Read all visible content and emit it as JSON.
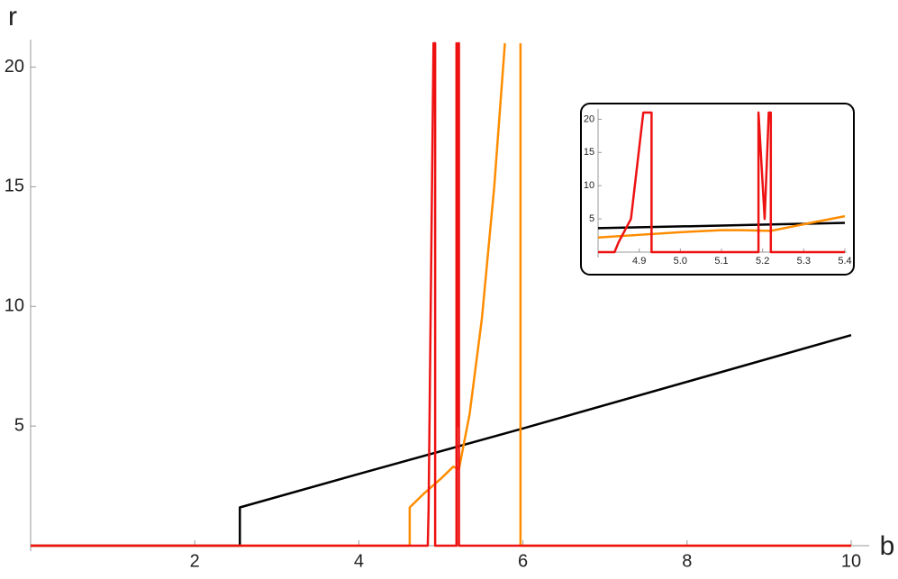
{
  "chart_data": [
    {
      "type": "line",
      "x_label": "b",
      "y_label": "r",
      "xlim": [
        0,
        10
      ],
      "ylim": [
        0,
        21
      ],
      "xticks": [
        2,
        4,
        6,
        8,
        10
      ],
      "yticks": [
        5,
        10,
        15,
        20
      ],
      "series": [
        {
          "color": "#000000",
          "x": [
            0,
            2.55,
            2.55,
            4,
            6,
            8,
            10
          ],
          "values": [
            0,
            0,
            1.6,
            3.0,
            4.9,
            6.85,
            8.8
          ]
        },
        {
          "color": "#ff8c00",
          "x": [
            0,
            4.62,
            4.62,
            4.8,
            5.0,
            5.15,
            5.22,
            5.35,
            5.5,
            5.65,
            5.78,
            5.9,
            5.97,
            5.97,
            10
          ],
          "values": [
            0,
            0,
            1.6,
            2.2,
            2.8,
            3.3,
            3.2,
            5.5,
            9.5,
            15,
            21,
            null,
            21,
            0,
            0
          ]
        },
        {
          "color": "#ee1111",
          "x": [
            0,
            4.84,
            4.85,
            4.91,
            4.93,
            4.93,
            5.19,
            5.19,
            5.205,
            5.215,
            5.22,
            5.22,
            10
          ],
          "values": [
            0,
            0,
            1.5,
            21,
            21,
            0,
            0,
            21,
            5,
            21,
            21,
            0,
            0
          ]
        }
      ]
    },
    {
      "type": "line",
      "xlim": [
        4.8,
        5.4
      ],
      "ylim": [
        0,
        21
      ],
      "xticks": [
        4.9,
        {
          "value": 5,
          "label": "5.0"
        },
        5.1,
        5.2,
        5.3,
        5.4
      ],
      "yticks": [
        5,
        10,
        15,
        20
      ],
      "series": [
        {
          "color": "#000000",
          "x": [
            4.8,
            5.4
          ],
          "values": [
            3.6,
            4.4
          ]
        },
        {
          "color": "#ff8c00",
          "x": [
            4.8,
            4.9,
            5.0,
            5.1,
            5.15,
            5.22,
            5.3,
            5.4
          ],
          "values": [
            2.2,
            2.6,
            3.0,
            3.3,
            3.3,
            3.2,
            4.2,
            5.4
          ]
        },
        {
          "color": "#ee1111",
          "x": [
            4.8,
            4.84,
            4.85,
            4.88,
            4.91,
            4.93,
            4.93,
            5.19,
            5.19,
            5.205,
            5.215,
            5.22,
            5.22,
            5.4
          ],
          "values": [
            0,
            0,
            1.5,
            5,
            21,
            21,
            0,
            0,
            21,
            5,
            21,
            21,
            0,
            0
          ]
        }
      ]
    }
  ]
}
